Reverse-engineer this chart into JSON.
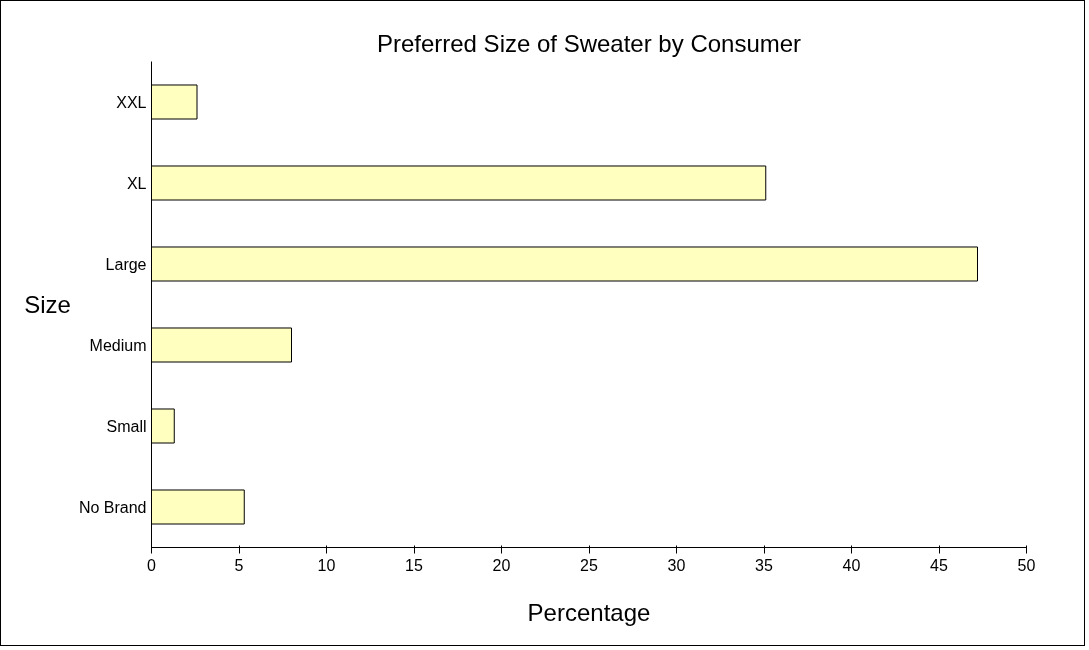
{
  "chart_data": {
    "type": "bar",
    "orientation": "horizontal",
    "title": "Preferred Size of Sweater by Consumer",
    "xlabel": "Percentage",
    "ylabel": "Size",
    "categories": [
      "XXL",
      "XL",
      "Large",
      "Medium",
      "Small",
      "No Brand"
    ],
    "values": [
      2.6,
      35.1,
      47.2,
      8.0,
      1.3,
      5.3
    ],
    "color": "#ffffc0",
    "xlim": [
      0,
      50
    ],
    "xticks": [
      0,
      5,
      10,
      15,
      20,
      25,
      30,
      35,
      40,
      45,
      50
    ],
    "grid": false
  }
}
